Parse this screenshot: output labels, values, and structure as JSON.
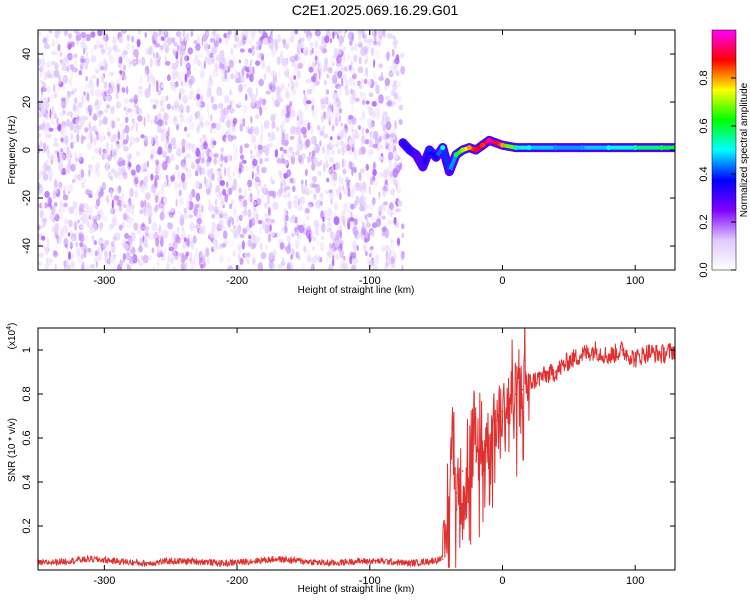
{
  "figure": {
    "title": "C2E1.2025.069.16.29.G01"
  },
  "chart_data": [
    {
      "type": "heatmap",
      "xlabel": "Height of straight line (km)",
      "ylabel": "Frequency (Hz)",
      "xlim": [
        -350,
        130
      ],
      "ylim": [
        -50,
        50
      ],
      "xticks": [
        -300,
        -200,
        -100,
        0,
        100
      ],
      "yticks": [
        -40,
        -20,
        0,
        20,
        40
      ],
      "colorbar": {
        "label": "Normalized spectral amplitude",
        "range": [
          0,
          1
        ],
        "ticks": [
          0.0,
          0.2,
          0.4,
          0.6,
          0.8
        ],
        "colors": [
          "#ffffff",
          "#e0c8ff",
          "#7f00ff",
          "#0000ff",
          "#00ffff",
          "#00ff00",
          "#ffff00",
          "#ff0000",
          "#ff00ff"
        ]
      },
      "noise_region": {
        "x_from": -350,
        "x_to": -75,
        "typical_amplitude": 0.1
      },
      "signal_trace": {
        "x": [
          -75,
          -70,
          -65,
          -60,
          -55,
          -50,
          -45,
          -40,
          -35,
          -30,
          -25,
          -20,
          -15,
          -10,
          -5,
          0,
          10,
          20,
          40,
          60,
          80,
          100,
          120,
          130
        ],
        "frequency": [
          3,
          0,
          -2,
          -7,
          0,
          -3,
          1,
          -9,
          -2,
          0,
          1,
          0,
          2,
          4,
          3,
          2,
          1,
          1,
          1,
          1,
          1,
          1,
          1,
          1
        ],
        "amplitude": [
          0.35,
          0.35,
          0.3,
          0.3,
          0.4,
          0.35,
          0.5,
          0.3,
          0.6,
          0.7,
          0.8,
          0.9,
          0.85,
          0.95,
          0.9,
          0.8,
          0.55,
          0.5,
          0.45,
          0.45,
          0.5,
          0.55,
          0.6,
          0.6
        ]
      }
    },
    {
      "type": "line",
      "xlabel": "Height of straight line (km)",
      "ylabel": "SNR (10 * v/v)",
      "y_multiplier": "(x10",
      "y_multiplier_exp": "4",
      "y_multiplier_close": ")",
      "xlim": [
        -350,
        130
      ],
      "ylim": [
        0,
        1.1
      ],
      "xticks": [
        -300,
        -200,
        -100,
        0,
        100
      ],
      "yticks": [
        0.2,
        0.4,
        0.6,
        0.8,
        1
      ],
      "series": [
        {
          "color": "#e03030",
          "x": [
            -350,
            -330,
            -310,
            -290,
            -270,
            -250,
            -230,
            -210,
            -190,
            -170,
            -150,
            -130,
            -110,
            -90,
            -70,
            -55,
            -45,
            -42,
            -40,
            -38,
            -35,
            -30,
            -25,
            -20,
            -15,
            -10,
            -5,
            0,
            5,
            10,
            15,
            20,
            30,
            40,
            50,
            60,
            70,
            80,
            90,
            100,
            110,
            120,
            130
          ],
          "y": [
            0.03,
            0.04,
            0.05,
            0.04,
            0.03,
            0.04,
            0.04,
            0.03,
            0.04,
            0.05,
            0.04,
            0.03,
            0.04,
            0.04,
            0.03,
            0.04,
            0.05,
            0.15,
            0.3,
            0.65,
            0.35,
            0.45,
            0.4,
            0.5,
            0.55,
            0.6,
            0.68,
            0.72,
            0.78,
            0.8,
            0.82,
            0.85,
            0.88,
            0.9,
            0.95,
            0.98,
            1.0,
            0.97,
            1.0,
            0.96,
            0.99,
            0.98,
            1.0
          ]
        }
      ]
    }
  ]
}
